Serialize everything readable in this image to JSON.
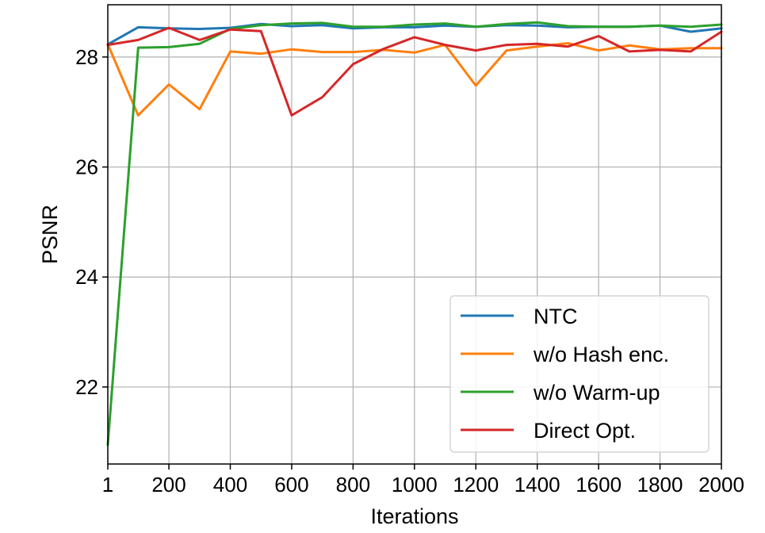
{
  "chart_data": {
    "type": "line",
    "xlabel": "Iterations",
    "ylabel": "PSNR",
    "xlim": [
      1,
      2000
    ],
    "ylim": [
      20.6,
      28.95
    ],
    "xticks": [
      1,
      200,
      400,
      600,
      800,
      1000,
      1200,
      1400,
      1600,
      1800,
      2000
    ],
    "yticks": [
      22,
      24,
      26,
      28
    ],
    "grid": true,
    "legend_position": "lower-right",
    "x": [
      1,
      100,
      200,
      300,
      400,
      500,
      600,
      700,
      800,
      900,
      1000,
      1100,
      1200,
      1300,
      1400,
      1500,
      1600,
      1700,
      1800,
      1900,
      2000
    ],
    "series": [
      {
        "name": "NTC",
        "color": "#1f77b4",
        "values": [
          28.23,
          28.54,
          28.52,
          28.51,
          28.53,
          28.6,
          28.56,
          28.58,
          28.52,
          28.54,
          28.54,
          28.57,
          28.55,
          28.58,
          28.57,
          28.54,
          28.55,
          28.55,
          28.57,
          28.46,
          28.52
        ]
      },
      {
        "name": "w/o Hash enc.",
        "color": "#ff7f0e",
        "values": [
          28.23,
          26.94,
          27.5,
          27.05,
          28.1,
          28.06,
          28.14,
          28.09,
          28.09,
          28.13,
          28.08,
          28.22,
          27.48,
          28.12,
          28.19,
          28.25,
          28.12,
          28.21,
          28.14,
          28.16,
          28.16
        ]
      },
      {
        "name": "w/o Warm-up",
        "color": "#2ca02c",
        "values": [
          20.95,
          28.17,
          28.18,
          28.24,
          28.51,
          28.58,
          28.61,
          28.62,
          28.55,
          28.55,
          28.59,
          28.61,
          28.55,
          28.6,
          28.63,
          28.56,
          28.55,
          28.55,
          28.57,
          28.55,
          28.59
        ]
      },
      {
        "name": "Direct Opt.",
        "color": "#d62728",
        "values": [
          28.22,
          28.31,
          28.53,
          28.31,
          28.5,
          28.47,
          26.94,
          27.27,
          27.87,
          28.15,
          28.36,
          28.22,
          28.12,
          28.22,
          28.24,
          28.19,
          28.38,
          28.1,
          28.13,
          28.1,
          28.46
        ]
      }
    ]
  }
}
